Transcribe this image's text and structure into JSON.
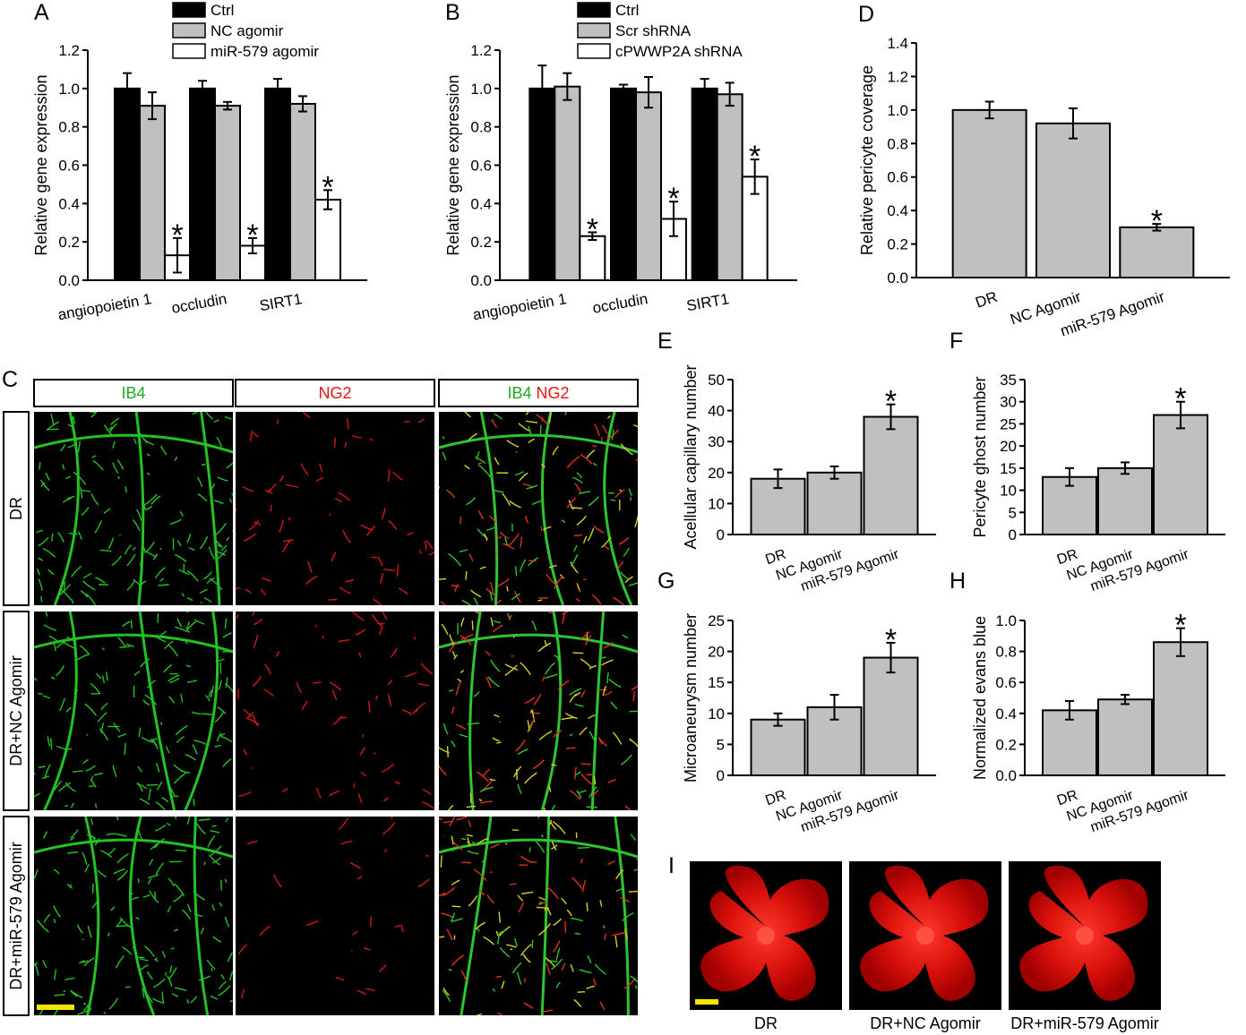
{
  "chart_data": [
    {
      "panel_label": "A",
      "type": "bar",
      "categories": [
        "angiopoietin 1",
        "occludin",
        "SIRT1"
      ],
      "series": [
        {
          "name": "Ctrl",
          "values": [
            1.0,
            1.0,
            1.0
          ],
          "errors": [
            0.08,
            0.04,
            0.05
          ],
          "color": "#000000"
        },
        {
          "name": "NC agomir",
          "values": [
            0.91,
            0.91,
            0.92
          ],
          "errors": [
            0.07,
            0.02,
            0.04
          ],
          "color": "#c0c0c0"
        },
        {
          "name": "miR-579 agomir",
          "values": [
            0.13,
            0.18,
            0.42
          ],
          "errors": [
            0.09,
            0.04,
            0.05
          ],
          "color": "#ffffff"
        }
      ],
      "significant": [
        [
          2,
          0
        ],
        [
          2,
          1
        ],
        [
          2,
          2
        ]
      ],
      "ylabel": "Relative gene expression",
      "ylim": [
        0,
        1.2
      ],
      "yticks": [
        "0.0",
        "0.2",
        "0.4",
        "0.6",
        "0.8",
        "1.0",
        "1.2"
      ],
      "legend": "top"
    },
    {
      "panel_label": "B",
      "type": "bar",
      "categories": [
        "angiopoietin 1",
        "occludin",
        "SIRT1"
      ],
      "series": [
        {
          "name": "Ctrl",
          "values": [
            1.0,
            1.0,
            1.0
          ],
          "errors": [
            0.12,
            0.02,
            0.05
          ],
          "color": "#000000"
        },
        {
          "name": "Scr shRNA",
          "values": [
            1.01,
            0.98,
            0.97
          ],
          "errors": [
            0.07,
            0.08,
            0.06
          ],
          "color": "#c0c0c0"
        },
        {
          "name": "cPWWP2A shRNA",
          "values": [
            0.23,
            0.32,
            0.54
          ],
          "errors": [
            0.02,
            0.09,
            0.09
          ],
          "color": "#ffffff"
        }
      ],
      "significant": [
        [
          2,
          0
        ],
        [
          2,
          1
        ],
        [
          2,
          2
        ]
      ],
      "ylabel": "Relative gene expression",
      "ylim": [
        0,
        1.2
      ],
      "yticks": [
        "0.0",
        "0.2",
        "0.4",
        "0.6",
        "0.8",
        "1.0",
        "1.2"
      ],
      "legend": "top"
    },
    {
      "panel_label": "D",
      "type": "bar",
      "categories": [
        "DR",
        "NC Agomir",
        "miR-579 Agomir"
      ],
      "values": [
        1.0,
        0.92,
        0.3
      ],
      "errors": [
        0.05,
        0.09,
        0.02
      ],
      "color": "#c0c0c0",
      "significant": [
        2
      ],
      "ylabel": "Relative pericyte coverage",
      "ylim": [
        0,
        1.4
      ],
      "yticks": [
        "0.0",
        "0.2",
        "0.4",
        "0.6",
        "0.8",
        "1.0",
        "1.2",
        "1.4"
      ]
    },
    {
      "panel_label": "E",
      "type": "bar",
      "categories": [
        "DR",
        "NC Agomir",
        "miR-579 Agomir"
      ],
      "values": [
        18,
        20,
        38
      ],
      "errors": [
        3,
        2,
        4
      ],
      "color": "#c0c0c0",
      "significant": [
        2
      ],
      "ylabel": "Acellular capillary number",
      "ylim": [
        0,
        50
      ],
      "yticks": [
        "0",
        "10",
        "20",
        "30",
        "40",
        "50"
      ]
    },
    {
      "panel_label": "F",
      "type": "bar",
      "categories": [
        "DR",
        "NC Agomir",
        "miR-579 Agomir"
      ],
      "values": [
        13,
        15,
        27
      ],
      "errors": [
        2,
        1.3,
        3
      ],
      "color": "#c0c0c0",
      "significant": [
        2
      ],
      "ylabel": "Pericyte ghost number",
      "ylim": [
        0,
        35
      ],
      "yticks": [
        "0",
        "5",
        "10",
        "15",
        "20",
        "25",
        "30",
        "35"
      ]
    },
    {
      "panel_label": "G",
      "type": "bar",
      "categories": [
        "DR",
        "NC Agomir",
        "miR-579 Agomir"
      ],
      "values": [
        9,
        11,
        19
      ],
      "errors": [
        1,
        2,
        2.4
      ],
      "color": "#c0c0c0",
      "significant": [
        2
      ],
      "ylabel": "Microaneurysm number",
      "ylim": [
        0,
        25
      ],
      "yticks": [
        "0",
        "5",
        "10",
        "15",
        "20",
        "25"
      ]
    },
    {
      "panel_label": "H",
      "type": "bar",
      "categories": [
        "DR",
        "NC Agomir",
        "miR-579 Agomir"
      ],
      "values": [
        0.42,
        0.49,
        0.86
      ],
      "errors": [
        0.06,
        0.03,
        0.09
      ],
      "color": "#c0c0c0",
      "significant": [
        2
      ],
      "ylabel": "Normalized evans blue",
      "ylim": [
        0,
        1.0
      ],
      "yticks": [
        "0.0",
        "0.2",
        "0.4",
        "0.6",
        "0.8",
        "1.0"
      ]
    }
  ],
  "panel_c": {
    "label": "C",
    "columns": [
      {
        "parts": [
          {
            "text": "IB4",
            "color": "#22aa22"
          }
        ]
      },
      {
        "parts": [
          {
            "text": "NG2",
            "color": "#ee1111"
          }
        ]
      },
      {
        "parts": [
          {
            "text": "IB4",
            "color": "#22aa22"
          },
          {
            "text": " NG2",
            "color": "#ee1111"
          }
        ]
      }
    ],
    "rows": [
      "DR",
      "DR+NC Agomir",
      "DR+miR-579 Agomir"
    ]
  },
  "panel_i": {
    "label": "I",
    "captions": [
      "DR",
      "DR+NC Agomir",
      "DR+miR-579 Agomir"
    ]
  },
  "significance_marker": "*"
}
